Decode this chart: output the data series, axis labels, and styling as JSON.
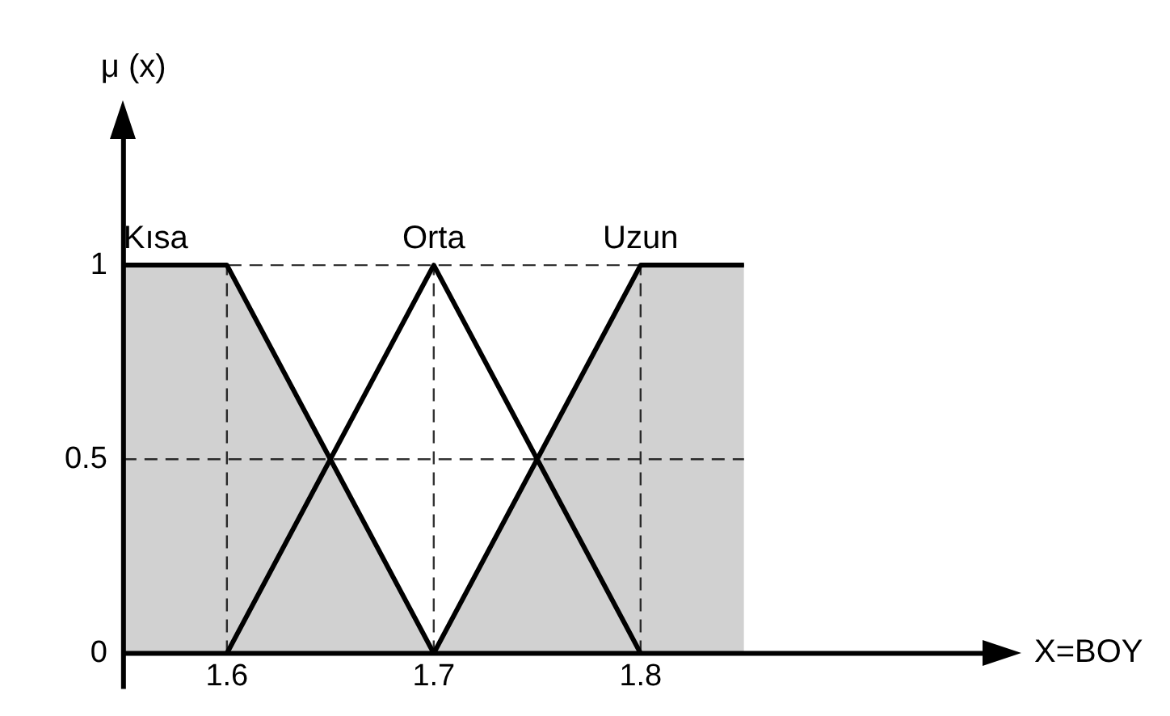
{
  "chart_data": {
    "type": "line",
    "xlabel": "X=BOY",
    "ylabel": "μ (x)",
    "xlim": [
      1.55,
      1.97
    ],
    "ylim": [
      0,
      1.35
    ],
    "xticks": [
      1.6,
      1.7,
      1.8
    ],
    "yticks": [
      0,
      0.5,
      1
    ],
    "series": [
      {
        "name": "Kısa",
        "type": "area",
        "color": "#000000",
        "x": [
          1.55,
          1.6,
          1.7
        ],
        "values": [
          1,
          1,
          0
        ]
      },
      {
        "name": "Orta",
        "type": "line",
        "color": "#000000",
        "x": [
          1.6,
          1.7,
          1.8
        ],
        "values": [
          0,
          1,
          0
        ]
      },
      {
        "name": "Uzun",
        "type": "area",
        "color": "#000000",
        "x": [
          1.7,
          1.8,
          1.85
        ],
        "values": [
          0,
          1,
          1
        ]
      }
    ],
    "ref_lines": [
      {
        "axis": "y",
        "value": 1,
        "line_style": "dashed",
        "color": "#333333"
      },
      {
        "axis": "y",
        "value": 0.5,
        "line_style": "dashed",
        "color": "#333333"
      },
      {
        "axis": "x",
        "value": 1.6,
        "line_style": "dashed",
        "color": "#333333"
      },
      {
        "axis": "x",
        "value": 1.7,
        "line_style": "dashed",
        "color": "#333333"
      },
      {
        "axis": "x",
        "value": 1.8,
        "line_style": "dashed",
        "color": "#333333"
      }
    ],
    "grid": false,
    "legend": false,
    "marker": "none",
    "line_style": "solid"
  }
}
